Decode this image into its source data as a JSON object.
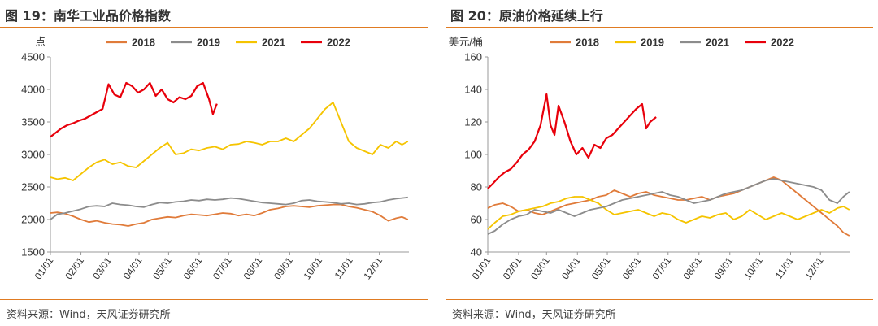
{
  "panels": [
    {
      "title": "图 19：南华工业品价格指数",
      "source": "资料来源：Wind，天风证券研究所"
    },
    {
      "title": "图 20：原油价格延续上行",
      "source": "资料来源：Wind，天风证券研究所"
    }
  ],
  "chart_data": [
    {
      "type": "line",
      "title": "",
      "ylabel": "点",
      "xlabel": "",
      "ylim": [
        1500,
        4500
      ],
      "yticks": [
        1500,
        2000,
        2500,
        3000,
        3500,
        4000,
        4500
      ],
      "xticks": [
        "01/01",
        "02/01",
        "03/01",
        "04/01",
        "05/01",
        "06/01",
        "07/01",
        "08/01",
        "09/01",
        "10/01",
        "11/01",
        "12/01"
      ],
      "legend_position": "top",
      "colors": {
        "2018": "#e07b3a",
        "2019": "#8c8c8c",
        "2021": "#f5c400",
        "2022": "#e8000b"
      },
      "series": [
        {
          "name": "2018",
          "x": [
            1,
            8,
            16,
            24,
            32,
            40,
            48,
            56,
            64,
            72,
            80,
            88,
            96,
            104,
            112,
            120,
            128,
            136,
            144,
            152,
            160,
            168,
            176,
            184,
            192,
            200,
            208,
            216,
            224,
            232,
            240,
            248,
            256,
            264,
            272,
            280,
            288,
            296,
            304,
            312,
            320,
            328,
            336,
            344,
            352,
            358,
            364
          ],
          "values": [
            2100,
            2110,
            2090,
            2050,
            2000,
            1960,
            1980,
            1950,
            1930,
            1920,
            1900,
            1930,
            1950,
            2000,
            2020,
            2040,
            2030,
            2060,
            2080,
            2070,
            2060,
            2080,
            2100,
            2090,
            2060,
            2080,
            2060,
            2100,
            2150,
            2170,
            2200,
            2210,
            2200,
            2190,
            2210,
            2220,
            2230,
            2230,
            2200,
            2180,
            2150,
            2120,
            2060,
            1980,
            2020,
            2040,
            2000
          ]
        },
        {
          "name": "2019",
          "x": [
            1,
            8,
            16,
            24,
            32,
            40,
            48,
            56,
            64,
            72,
            80,
            88,
            96,
            104,
            112,
            120,
            128,
            136,
            144,
            152,
            160,
            168,
            176,
            184,
            192,
            200,
            208,
            216,
            224,
            232,
            240,
            248,
            256,
            264,
            272,
            280,
            288,
            296,
            304,
            312,
            320,
            328,
            336,
            344,
            352,
            358,
            364
          ],
          "values": [
            2000,
            2080,
            2100,
            2130,
            2160,
            2200,
            2210,
            2200,
            2250,
            2230,
            2220,
            2200,
            2190,
            2230,
            2260,
            2250,
            2270,
            2280,
            2300,
            2290,
            2310,
            2300,
            2310,
            2330,
            2320,
            2300,
            2280,
            2260,
            2250,
            2240,
            2230,
            2250,
            2290,
            2300,
            2280,
            2270,
            2260,
            2240,
            2250,
            2230,
            2240,
            2260,
            2270,
            2300,
            2320,
            2330,
            2340
          ]
        },
        {
          "name": "2021",
          "x": [
            1,
            8,
            16,
            24,
            32,
            40,
            48,
            56,
            64,
            72,
            80,
            88,
            96,
            104,
            112,
            120,
            128,
            136,
            144,
            152,
            160,
            168,
            176,
            184,
            192,
            200,
            208,
            216,
            224,
            232,
            240,
            248,
            256,
            264,
            272,
            280,
            288,
            296,
            304,
            312,
            320,
            328,
            336,
            344,
            352,
            358,
            364
          ],
          "values": [
            2650,
            2620,
            2640,
            2600,
            2700,
            2800,
            2880,
            2920,
            2850,
            2880,
            2820,
            2800,
            2900,
            3000,
            3100,
            3180,
            3000,
            3020,
            3080,
            3060,
            3100,
            3120,
            3080,
            3150,
            3160,
            3200,
            3180,
            3150,
            3200,
            3200,
            3250,
            3200,
            3300,
            3400,
            3550,
            3700,
            3800,
            3500,
            3200,
            3100,
            3050,
            3000,
            3150,
            3100,
            3200,
            3150,
            3200
          ]
        },
        {
          "name": "2022",
          "x": [
            1,
            6,
            12,
            18,
            24,
            30,
            36,
            42,
            48,
            54,
            60,
            66,
            72,
            78,
            84,
            90,
            96,
            102,
            108,
            114,
            120,
            126,
            132,
            138,
            144,
            150,
            156,
            162,
            166,
            170
          ],
          "values": [
            3270,
            3330,
            3400,
            3450,
            3480,
            3520,
            3550,
            3600,
            3650,
            3700,
            4080,
            3920,
            3880,
            4100,
            4050,
            3950,
            4000,
            4100,
            3900,
            4000,
            3850,
            3800,
            3880,
            3850,
            3900,
            4050,
            4100,
            3850,
            3620,
            3780
          ]
        }
      ]
    },
    {
      "type": "line",
      "title": "",
      "ylabel": "美元/桶",
      "xlabel": "",
      "ylim": [
        40,
        160
      ],
      "yticks": [
        40,
        60,
        80,
        100,
        120,
        140,
        160
      ],
      "xticks": [
        "01/01",
        "02/01",
        "03/01",
        "04/01",
        "05/01",
        "06/01",
        "07/01",
        "08/01",
        "09/01",
        "10/01",
        "11/01",
        "12/01"
      ],
      "legend_position": "top",
      "colors": {
        "2018": "#e07b3a",
        "2019": "#f5c400",
        "2021": "#8c8c8c",
        "2022": "#e8000b"
      },
      "series": [
        {
          "name": "2018",
          "x": [
            1,
            8,
            16,
            24,
            32,
            40,
            48,
            56,
            64,
            72,
            80,
            88,
            96,
            104,
            112,
            120,
            128,
            136,
            144,
            152,
            160,
            168,
            176,
            184,
            192,
            200,
            208,
            216,
            224,
            232,
            240,
            248,
            256,
            264,
            272,
            280,
            288,
            296,
            304,
            312,
            320,
            328,
            336,
            344,
            352,
            358,
            364
          ],
          "values": [
            67,
            69,
            70,
            68,
            65,
            66,
            64,
            63,
            65,
            67,
            69,
            70,
            71,
            72,
            74,
            75,
            78,
            76,
            74,
            76,
            77,
            75,
            74,
            73,
            72,
            72,
            73,
            74,
            72,
            74,
            75,
            76,
            78,
            80,
            82,
            84,
            86,
            84,
            80,
            76,
            72,
            68,
            64,
            60,
            56,
            52,
            50
          ]
        },
        {
          "name": "2019",
          "x": [
            1,
            8,
            16,
            24,
            32,
            40,
            48,
            56,
            64,
            72,
            80,
            88,
            96,
            104,
            112,
            120,
            128,
            136,
            144,
            152,
            160,
            168,
            176,
            184,
            192,
            200,
            208,
            216,
            224,
            232,
            240,
            248,
            256,
            264,
            272,
            280,
            288,
            296,
            304,
            312,
            320,
            328,
            336,
            344,
            352,
            358,
            364
          ],
          "values": [
            54,
            58,
            62,
            63,
            65,
            66,
            67,
            68,
            70,
            71,
            73,
            74,
            74,
            72,
            70,
            66,
            63,
            64,
            65,
            66,
            64,
            62,
            64,
            63,
            60,
            58,
            60,
            62,
            61,
            63,
            64,
            60,
            62,
            66,
            63,
            60,
            62,
            64,
            62,
            60,
            62,
            64,
            66,
            64,
            67,
            68,
            66
          ]
        },
        {
          "name": "2021",
          "x": [
            1,
            8,
            16,
            24,
            32,
            40,
            48,
            56,
            64,
            72,
            80,
            88,
            96,
            104,
            112,
            120,
            128,
            136,
            144,
            152,
            160,
            168,
            176,
            184,
            192,
            200,
            208,
            216,
            224,
            232,
            240,
            248,
            256,
            264,
            272,
            280,
            288,
            296,
            304,
            312,
            320,
            328,
            336,
            344,
            352,
            358,
            364
          ],
          "values": [
            51,
            53,
            57,
            60,
            62,
            63,
            66,
            65,
            64,
            66,
            64,
            62,
            64,
            66,
            67,
            68,
            70,
            72,
            73,
            74,
            75,
            76,
            77,
            75,
            74,
            72,
            70,
            71,
            72,
            74,
            76,
            77,
            78,
            80,
            82,
            84,
            85,
            84,
            83,
            82,
            81,
            80,
            78,
            72,
            70,
            74,
            77
          ]
        },
        {
          "name": "2022",
          "x": [
            1,
            6,
            12,
            18,
            24,
            30,
            36,
            42,
            48,
            54,
            60,
            64,
            68,
            72,
            78,
            84,
            90,
            96,
            102,
            108,
            114,
            120,
            126,
            132,
            138,
            144,
            150,
            156,
            160,
            164,
            170
          ],
          "values": [
            79,
            82,
            86,
            89,
            91,
            95,
            100,
            103,
            108,
            118,
            137,
            118,
            112,
            130,
            120,
            108,
            100,
            104,
            98,
            106,
            104,
            110,
            112,
            116,
            120,
            124,
            128,
            131,
            116,
            120,
            123
          ]
        }
      ]
    }
  ]
}
